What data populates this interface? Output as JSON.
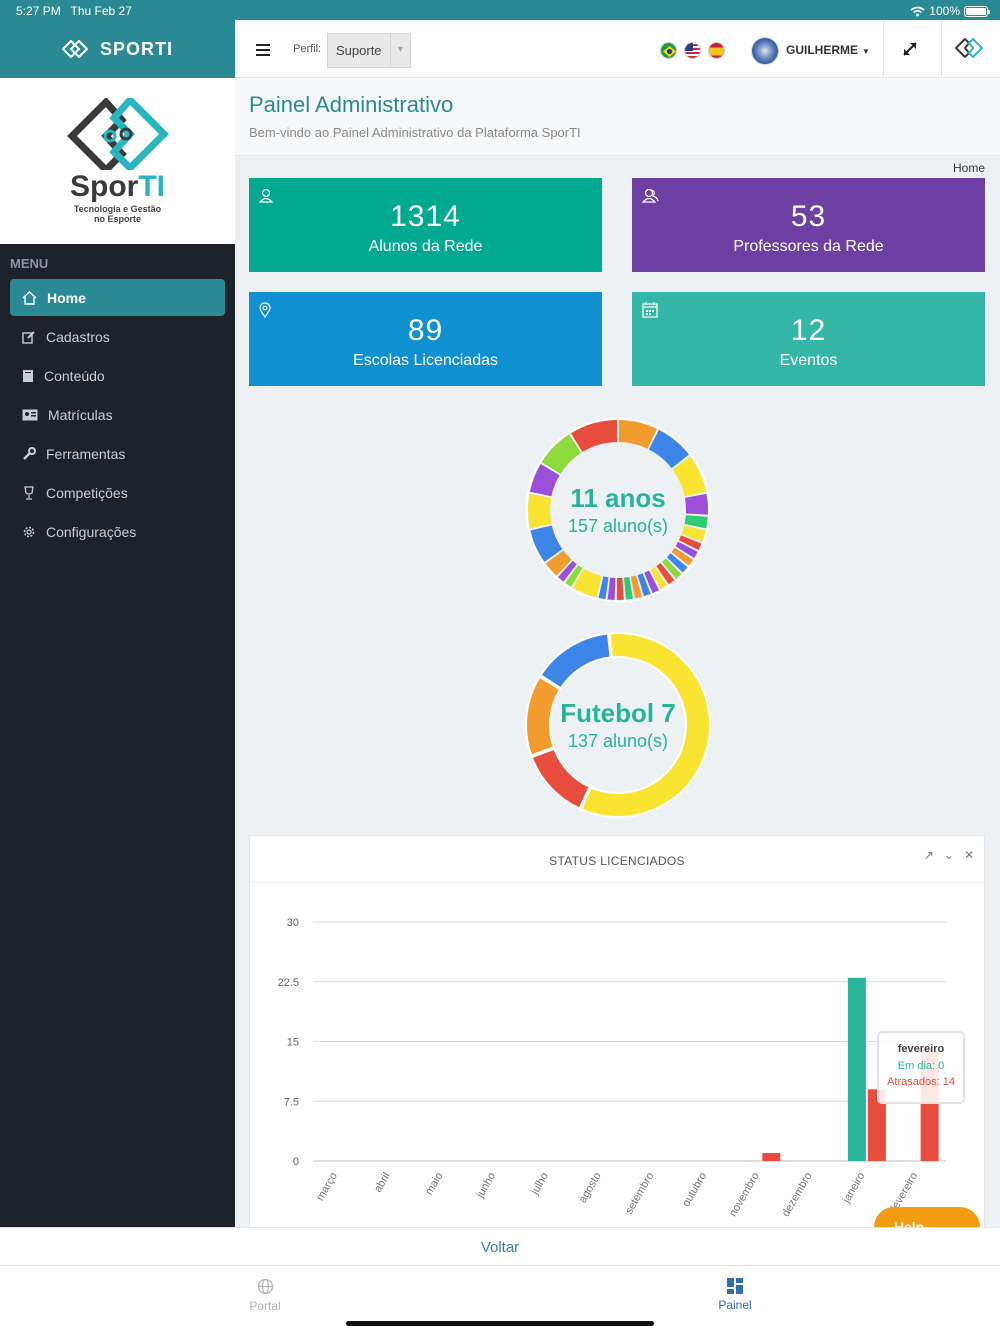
{
  "status_bar": {
    "time": "5:27 PM",
    "date": "Thu Feb 27",
    "battery": "100%"
  },
  "sidebar": {
    "brand": "SPORTI",
    "logo_text_a": "Spor",
    "logo_text_b": "TI",
    "logo_sub_1": "Tecnologia e Gestão",
    "logo_sub_2": "no Esporte",
    "menu_title": "MENU",
    "items": [
      {
        "label": "Home",
        "icon": "home-icon",
        "active": true
      },
      {
        "label": "Cadastros",
        "icon": "edit-icon"
      },
      {
        "label": "Conteúdo",
        "icon": "book-icon"
      },
      {
        "label": "Matrículas",
        "icon": "id-card-icon"
      },
      {
        "label": "Ferramentas",
        "icon": "wrench-icon"
      },
      {
        "label": "Competições",
        "icon": "trophy-icon"
      },
      {
        "label": "Configurações",
        "icon": "gear-icon"
      }
    ]
  },
  "header": {
    "perfil_label": "Perfil:",
    "perfil_value": "Suporte",
    "languages": [
      "pt-BR",
      "en-US",
      "es"
    ],
    "user_name": "GUILHERME"
  },
  "page": {
    "title": "Painel Administrativo",
    "subtitle": "Bem-vindo ao Painel Administrativo da Plataforma SporTI",
    "breadcrumb": "Home"
  },
  "cards": [
    {
      "value": "1314",
      "label": "Alunos da Rede",
      "color": "#00a98f",
      "icon": "user-icon"
    },
    {
      "value": "53",
      "label": "Professores da Rede",
      "color": "#6d3fa3",
      "icon": "users-icon"
    },
    {
      "value": "89",
      "label": "Escolas Licenciadas",
      "color": "#0f91d1",
      "icon": "map-pin-icon"
    },
    {
      "value": "12",
      "label": "Eventos",
      "color": "#34b7a7",
      "icon": "calendar-icon"
    }
  ],
  "donut_age": {
    "title": "11 anos",
    "subtitle": "157 aluno(s)"
  },
  "donut_sport": {
    "title": "Futebol 7",
    "subtitle": "137 aluno(s)"
  },
  "status_panel": {
    "title": "STATUS LICENCIADOS",
    "tooltip": {
      "title": "fevereiro",
      "em_dia": "Em dia: 0",
      "atrasados": "Atrasados: 14"
    }
  },
  "chart_data": {
    "type": "bar",
    "title": "STATUS LICENCIADOS",
    "categories": [
      "março",
      "abril",
      "maio",
      "junho",
      "julho",
      "agosto",
      "setembro",
      "outubro",
      "novembro",
      "dezembro",
      "janeiro",
      "fevereiro"
    ],
    "series": [
      {
        "name": "Em dia",
        "color": "#26b59a",
        "values": [
          0,
          0,
          0,
          0,
          0,
          0,
          0,
          0,
          0,
          0,
          23,
          0
        ]
      },
      {
        "name": "Atrasados",
        "color": "#e74c3c",
        "values": [
          0,
          0,
          0,
          0,
          0,
          0,
          0,
          0,
          1,
          0,
          9,
          14
        ]
      }
    ],
    "yticks": [
      "0",
      "7.5",
      "15",
      "22.5",
      "30"
    ],
    "ylim": [
      0,
      30
    ],
    "grid": true
  },
  "help_button": "Help",
  "voltar": "Voltar",
  "tabbar": {
    "portal": "Portal",
    "painel": "Painel"
  },
  "colors": {
    "teal": "#2a8a93",
    "sidebar": "#1e232b",
    "accent_blue": "#2f7db8"
  }
}
